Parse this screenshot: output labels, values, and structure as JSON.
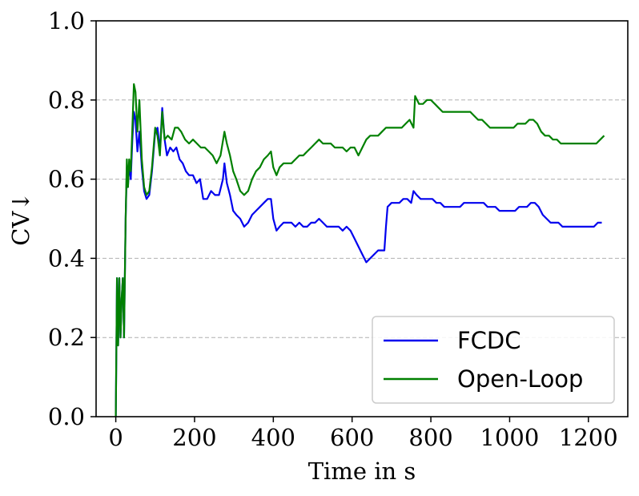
{
  "chart_data": {
    "type": "line",
    "xlabel": "Time in s",
    "ylabel": "CV↓",
    "xlim": [
      -50,
      1300
    ],
    "ylim": [
      0.0,
      1.0
    ],
    "xticks": [
      0,
      200,
      400,
      600,
      800,
      1000,
      1200
    ],
    "xtick_labels": [
      "0",
      "200",
      "400",
      "600",
      "800",
      "1000",
      "1200"
    ],
    "yticks": [
      0.0,
      0.2,
      0.4,
      0.6,
      0.8,
      1.0
    ],
    "ytick_labels": [
      "0.0",
      "0.2",
      "0.4",
      "0.6",
      "0.8",
      "1.0"
    ],
    "grid": "horizontal dashed",
    "legend_position": "lower-right",
    "series": [
      {
        "name": "FCDC",
        "color": "#0000ee",
        "points": [
          [
            0,
            0.0
          ],
          [
            3,
            0.35
          ],
          [
            6,
            0.18
          ],
          [
            9,
            0.35
          ],
          [
            12,
            0.2
          ],
          [
            15,
            0.3
          ],
          [
            18,
            0.35
          ],
          [
            21,
            0.2
          ],
          [
            25,
            0.5
          ],
          [
            28,
            0.63
          ],
          [
            31,
            0.58
          ],
          [
            34,
            0.64
          ],
          [
            38,
            0.6
          ],
          [
            42,
            0.7
          ],
          [
            46,
            0.77
          ],
          [
            50,
            0.75
          ],
          [
            55,
            0.67
          ],
          [
            60,
            0.72
          ],
          [
            66,
            0.63
          ],
          [
            72,
            0.57
          ],
          [
            78,
            0.55
          ],
          [
            85,
            0.56
          ],
          [
            92,
            0.62
          ],
          [
            100,
            0.72
          ],
          [
            106,
            0.73
          ],
          [
            112,
            0.67
          ],
          [
            118,
            0.78
          ],
          [
            124,
            0.7
          ],
          [
            130,
            0.66
          ],
          [
            138,
            0.68
          ],
          [
            146,
            0.67
          ],
          [
            154,
            0.68
          ],
          [
            162,
            0.65
          ],
          [
            170,
            0.64
          ],
          [
            178,
            0.62
          ],
          [
            186,
            0.61
          ],
          [
            196,
            0.61
          ],
          [
            205,
            0.59
          ],
          [
            214,
            0.6
          ],
          [
            222,
            0.55
          ],
          [
            232,
            0.55
          ],
          [
            242,
            0.57
          ],
          [
            252,
            0.56
          ],
          [
            262,
            0.56
          ],
          [
            272,
            0.6
          ],
          [
            276,
            0.64
          ],
          [
            282,
            0.59
          ],
          [
            290,
            0.56
          ],
          [
            298,
            0.52
          ],
          [
            306,
            0.51
          ],
          [
            316,
            0.5
          ],
          [
            326,
            0.48
          ],
          [
            336,
            0.49
          ],
          [
            346,
            0.51
          ],
          [
            356,
            0.52
          ],
          [
            366,
            0.53
          ],
          [
            376,
            0.54
          ],
          [
            386,
            0.55
          ],
          [
            394,
            0.55
          ],
          [
            400,
            0.5
          ],
          [
            408,
            0.47
          ],
          [
            416,
            0.48
          ],
          [
            426,
            0.49
          ],
          [
            436,
            0.49
          ],
          [
            446,
            0.49
          ],
          [
            456,
            0.48
          ],
          [
            466,
            0.49
          ],
          [
            476,
            0.48
          ],
          [
            486,
            0.48
          ],
          [
            496,
            0.49
          ],
          [
            506,
            0.49
          ],
          [
            516,
            0.5
          ],
          [
            526,
            0.49
          ],
          [
            536,
            0.48
          ],
          [
            546,
            0.48
          ],
          [
            556,
            0.48
          ],
          [
            566,
            0.48
          ],
          [
            576,
            0.47
          ],
          [
            586,
            0.48
          ],
          [
            596,
            0.47
          ],
          [
            606,
            0.45
          ],
          [
            616,
            0.43
          ],
          [
            626,
            0.41
          ],
          [
            636,
            0.39
          ],
          [
            646,
            0.4
          ],
          [
            656,
            0.41
          ],
          [
            666,
            0.42
          ],
          [
            676,
            0.42
          ],
          [
            682,
            0.42
          ],
          [
            686,
            0.48
          ],
          [
            690,
            0.53
          ],
          [
            700,
            0.54
          ],
          [
            710,
            0.54
          ],
          [
            720,
            0.54
          ],
          [
            730,
            0.55
          ],
          [
            740,
            0.55
          ],
          [
            750,
            0.54
          ],
          [
            756,
            0.57
          ],
          [
            764,
            0.56
          ],
          [
            774,
            0.55
          ],
          [
            784,
            0.55
          ],
          [
            794,
            0.55
          ],
          [
            804,
            0.55
          ],
          [
            814,
            0.54
          ],
          [
            824,
            0.54
          ],
          [
            834,
            0.53
          ],
          [
            844,
            0.53
          ],
          [
            854,
            0.53
          ],
          [
            864,
            0.53
          ],
          [
            874,
            0.53
          ],
          [
            884,
            0.54
          ],
          [
            894,
            0.54
          ],
          [
            904,
            0.54
          ],
          [
            914,
            0.54
          ],
          [
            924,
            0.54
          ],
          [
            934,
            0.54
          ],
          [
            944,
            0.53
          ],
          [
            954,
            0.53
          ],
          [
            964,
            0.53
          ],
          [
            974,
            0.52
          ],
          [
            984,
            0.52
          ],
          [
            994,
            0.52
          ],
          [
            1004,
            0.52
          ],
          [
            1014,
            0.52
          ],
          [
            1024,
            0.53
          ],
          [
            1034,
            0.53
          ],
          [
            1044,
            0.53
          ],
          [
            1054,
            0.54
          ],
          [
            1064,
            0.54
          ],
          [
            1074,
            0.53
          ],
          [
            1084,
            0.51
          ],
          [
            1094,
            0.5
          ],
          [
            1104,
            0.49
          ],
          [
            1114,
            0.49
          ],
          [
            1124,
            0.49
          ],
          [
            1134,
            0.48
          ],
          [
            1144,
            0.48
          ],
          [
            1154,
            0.48
          ],
          [
            1164,
            0.48
          ],
          [
            1174,
            0.48
          ],
          [
            1184,
            0.48
          ],
          [
            1194,
            0.48
          ],
          [
            1204,
            0.48
          ],
          [
            1214,
            0.48
          ],
          [
            1224,
            0.49
          ],
          [
            1234,
            0.49
          ]
        ]
      },
      {
        "name": "Open-Loop",
        "color": "#008000",
        "points": [
          [
            0,
            0.0
          ],
          [
            3,
            0.35
          ],
          [
            6,
            0.18
          ],
          [
            9,
            0.35
          ],
          [
            12,
            0.2
          ],
          [
            15,
            0.3
          ],
          [
            18,
            0.35
          ],
          [
            21,
            0.2
          ],
          [
            25,
            0.5
          ],
          [
            28,
            0.65
          ],
          [
            31,
            0.58
          ],
          [
            34,
            0.65
          ],
          [
            38,
            0.62
          ],
          [
            42,
            0.73
          ],
          [
            46,
            0.84
          ],
          [
            50,
            0.82
          ],
          [
            55,
            0.72
          ],
          [
            60,
            0.8
          ],
          [
            66,
            0.65
          ],
          [
            72,
            0.58
          ],
          [
            78,
            0.56
          ],
          [
            85,
            0.57
          ],
          [
            92,
            0.63
          ],
          [
            100,
            0.73
          ],
          [
            106,
            0.71
          ],
          [
            112,
            0.66
          ],
          [
            118,
            0.77
          ],
          [
            124,
            0.7
          ],
          [
            132,
            0.71
          ],
          [
            142,
            0.7
          ],
          [
            150,
            0.73
          ],
          [
            158,
            0.73
          ],
          [
            166,
            0.72
          ],
          [
            176,
            0.7
          ],
          [
            186,
            0.69
          ],
          [
            196,
            0.7
          ],
          [
            206,
            0.69
          ],
          [
            216,
            0.68
          ],
          [
            226,
            0.68
          ],
          [
            236,
            0.67
          ],
          [
            246,
            0.66
          ],
          [
            256,
            0.64
          ],
          [
            266,
            0.66
          ],
          [
            276,
            0.72
          ],
          [
            282,
            0.69
          ],
          [
            290,
            0.66
          ],
          [
            298,
            0.62
          ],
          [
            306,
            0.6
          ],
          [
            316,
            0.57
          ],
          [
            326,
            0.56
          ],
          [
            336,
            0.57
          ],
          [
            346,
            0.6
          ],
          [
            356,
            0.62
          ],
          [
            366,
            0.63
          ],
          [
            376,
            0.65
          ],
          [
            386,
            0.66
          ],
          [
            394,
            0.67
          ],
          [
            400,
            0.63
          ],
          [
            408,
            0.61
          ],
          [
            416,
            0.63
          ],
          [
            426,
            0.64
          ],
          [
            436,
            0.64
          ],
          [
            446,
            0.64
          ],
          [
            456,
            0.65
          ],
          [
            466,
            0.66
          ],
          [
            476,
            0.66
          ],
          [
            486,
            0.67
          ],
          [
            496,
            0.68
          ],
          [
            506,
            0.69
          ],
          [
            516,
            0.7
          ],
          [
            526,
            0.69
          ],
          [
            536,
            0.69
          ],
          [
            546,
            0.69
          ],
          [
            556,
            0.68
          ],
          [
            566,
            0.68
          ],
          [
            576,
            0.68
          ],
          [
            586,
            0.67
          ],
          [
            596,
            0.68
          ],
          [
            606,
            0.68
          ],
          [
            616,
            0.66
          ],
          [
            626,
            0.68
          ],
          [
            636,
            0.7
          ],
          [
            646,
            0.71
          ],
          [
            656,
            0.71
          ],
          [
            666,
            0.71
          ],
          [
            676,
            0.72
          ],
          [
            686,
            0.73
          ],
          [
            696,
            0.73
          ],
          [
            706,
            0.73
          ],
          [
            716,
            0.73
          ],
          [
            726,
            0.73
          ],
          [
            736,
            0.74
          ],
          [
            746,
            0.75
          ],
          [
            756,
            0.73
          ],
          [
            760,
            0.81
          ],
          [
            770,
            0.79
          ],
          [
            780,
            0.79
          ],
          [
            790,
            0.8
          ],
          [
            800,
            0.8
          ],
          [
            810,
            0.79
          ],
          [
            820,
            0.78
          ],
          [
            830,
            0.77
          ],
          [
            840,
            0.77
          ],
          [
            850,
            0.77
          ],
          [
            860,
            0.77
          ],
          [
            870,
            0.77
          ],
          [
            880,
            0.77
          ],
          [
            890,
            0.77
          ],
          [
            900,
            0.77
          ],
          [
            910,
            0.76
          ],
          [
            920,
            0.75
          ],
          [
            930,
            0.75
          ],
          [
            940,
            0.74
          ],
          [
            950,
            0.73
          ],
          [
            960,
            0.73
          ],
          [
            970,
            0.73
          ],
          [
            980,
            0.73
          ],
          [
            990,
            0.73
          ],
          [
            1000,
            0.73
          ],
          [
            1010,
            0.73
          ],
          [
            1020,
            0.74
          ],
          [
            1030,
            0.74
          ],
          [
            1040,
            0.74
          ],
          [
            1050,
            0.75
          ],
          [
            1060,
            0.75
          ],
          [
            1070,
            0.74
          ],
          [
            1080,
            0.72
          ],
          [
            1090,
            0.71
          ],
          [
            1100,
            0.71
          ],
          [
            1110,
            0.7
          ],
          [
            1120,
            0.7
          ],
          [
            1130,
            0.69
          ],
          [
            1140,
            0.69
          ],
          [
            1150,
            0.69
          ],
          [
            1160,
            0.69
          ],
          [
            1170,
            0.69
          ],
          [
            1180,
            0.69
          ],
          [
            1190,
            0.69
          ],
          [
            1200,
            0.69
          ],
          [
            1210,
            0.69
          ],
          [
            1220,
            0.69
          ],
          [
            1230,
            0.7
          ],
          [
            1240,
            0.71
          ]
        ]
      }
    ]
  }
}
